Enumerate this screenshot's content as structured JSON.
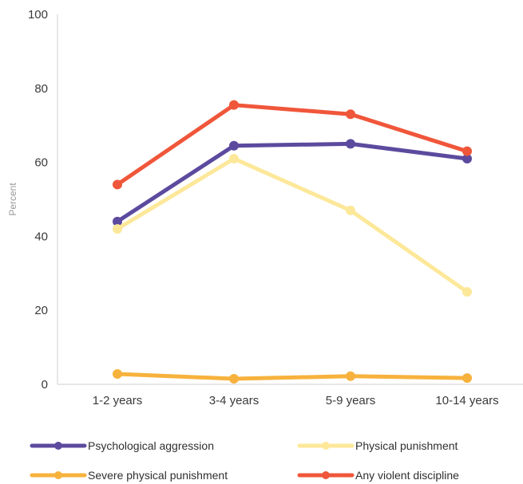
{
  "chart_data": {
    "type": "line",
    "categories": [
      "1-2 years",
      "3-4 years",
      "5-9 years",
      "10-14 years"
    ],
    "ylabel": "Percent",
    "ylim": [
      0,
      100
    ],
    "yticks": [
      0,
      20,
      40,
      60,
      80,
      100
    ],
    "grid": false,
    "legend_position": "bottom",
    "series": [
      {
        "name": "Psychological aggression",
        "color": "#5C4A9E",
        "values": [
          44,
          64.5,
          65,
          61
        ]
      },
      {
        "name": "Physical punishment",
        "color": "#FDE89A",
        "values": [
          42,
          61,
          47,
          25
        ]
      },
      {
        "name": "Severe physical punishment",
        "color": "#F7B23D",
        "values": [
          2.8,
          1.5,
          2.2,
          1.7
        ]
      },
      {
        "name": "Any violent discipline",
        "color": "#F0563A",
        "values": [
          54,
          75.5,
          73,
          63
        ]
      }
    ]
  }
}
